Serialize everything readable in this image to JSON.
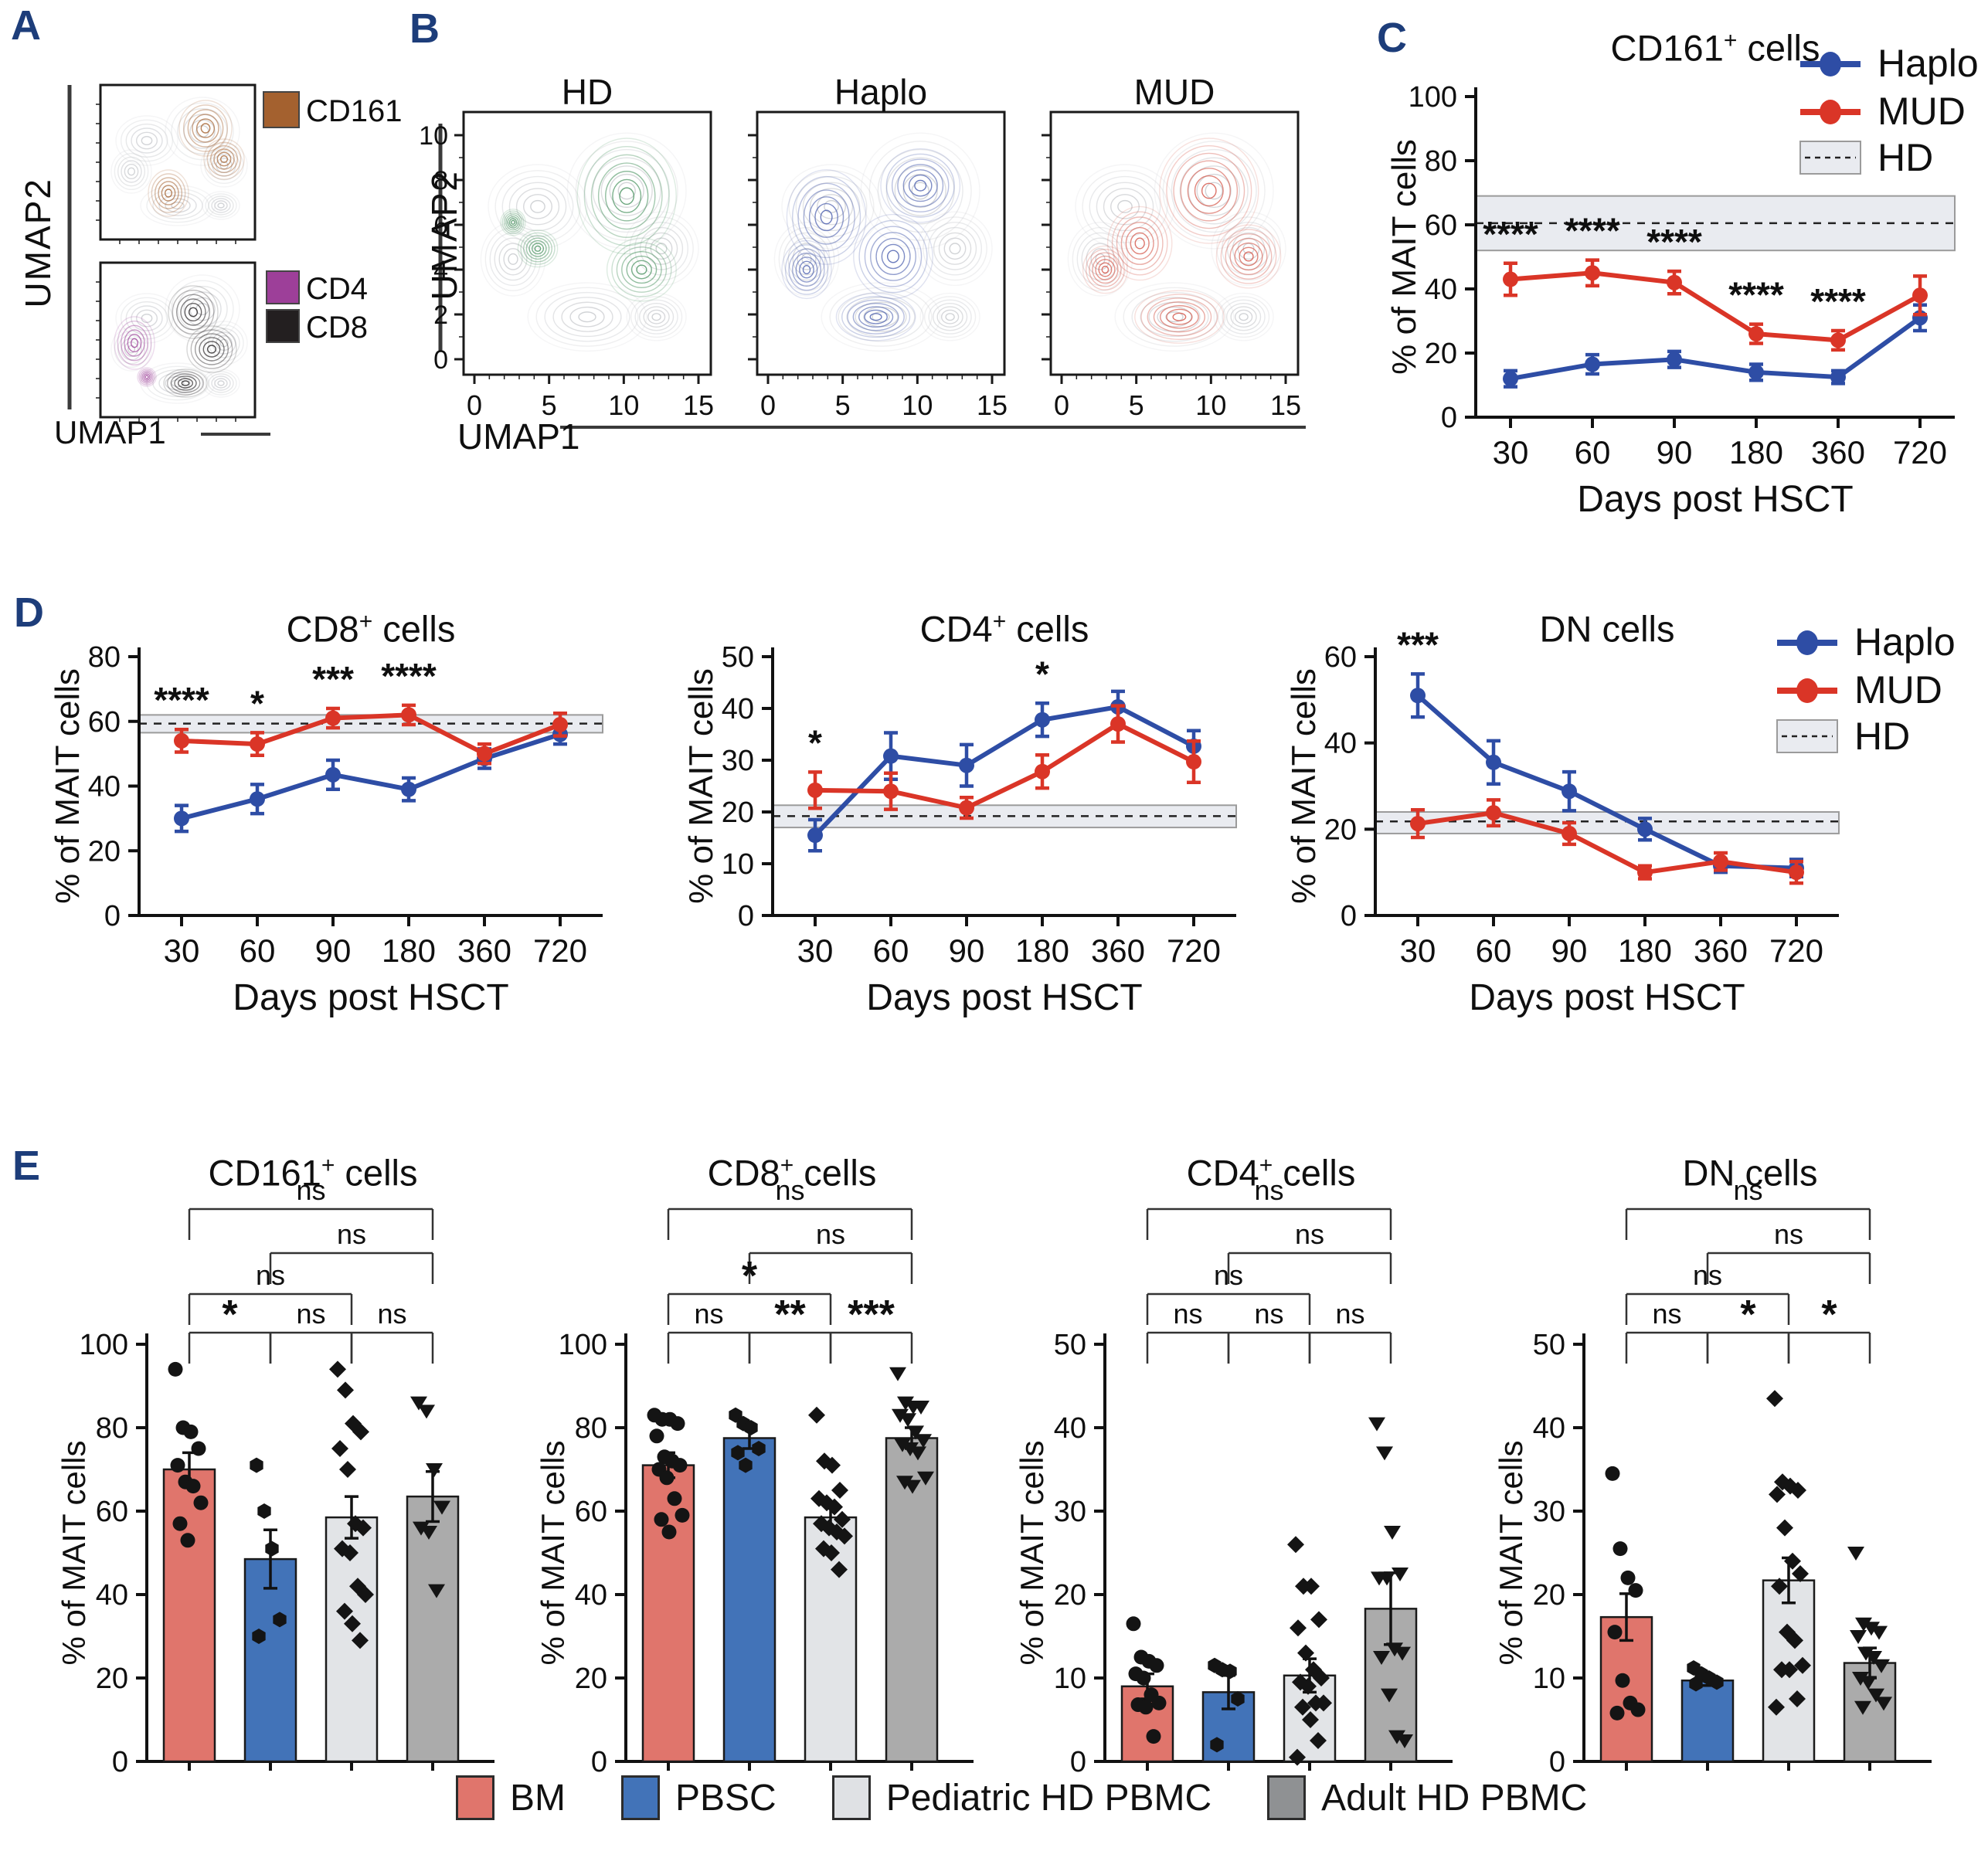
{
  "figure": {
    "panel_labels": {
      "A": "A",
      "B": "B",
      "C": "C",
      "D": "D",
      "E": "E"
    },
    "label_color": "#1d3d7a"
  },
  "panels": {
    "A": {
      "ylabel": "UMAP2",
      "xlabel": "UMAP1",
      "plots": [
        {
          "name": "cd161-map",
          "legend": [
            {
              "label": "CD161",
              "color": "#a4612f"
            }
          ]
        },
        {
          "name": "cd4-cd8-map",
          "legend": [
            {
              "label": "CD4",
              "color": "#9d3f99"
            },
            {
              "label": "CD8",
              "color": "#231f20"
            }
          ]
        }
      ]
    },
    "B": {
      "ylabel": "UMAP2",
      "xlabel": "UMAP1",
      "yticks": [
        0,
        2,
        4,
        6,
        8,
        10
      ],
      "xticks": [
        0,
        5,
        10,
        15
      ],
      "plots": [
        {
          "title": "HD",
          "color": "#4a9360"
        },
        {
          "title": "Haplo",
          "color": "#4c5fae"
        },
        {
          "title": "MUD",
          "color": "#d4574a"
        }
      ]
    }
  },
  "chart_data": [
    {
      "type": "line",
      "title": {
        "base": "CD161",
        "sup": "+",
        "rest": " cells"
      },
      "xlabel": "Days post HSCT",
      "ylabel": "% of MAIT cells",
      "categories": [
        "30",
        "60",
        "90",
        "180",
        "360",
        "720"
      ],
      "ylim": [
        0,
        100
      ],
      "yticks": [
        0,
        20,
        40,
        60,
        80,
        100
      ],
      "hd_band": {
        "label": "HD",
        "low": 52,
        "high": 69,
        "mean": 60.5
      },
      "series": [
        {
          "name": "Haplo",
          "color": "#2e4da5",
          "values": [
            12,
            16.5,
            18,
            14,
            12.5,
            31
          ],
          "errors": [
            2.5,
            3,
            2.5,
            2.5,
            2,
            4
          ]
        },
        {
          "name": "MUD",
          "color": "#da3527",
          "values": [
            43,
            45,
            42,
            26,
            24,
            38
          ],
          "errors": [
            5,
            4,
            3.5,
            3,
            3,
            6
          ]
        }
      ],
      "significance": [
        {
          "i": 0,
          "series": 1,
          "label": "****"
        },
        {
          "i": 1,
          "series": 1,
          "label": "****"
        },
        {
          "i": 2,
          "series": 1,
          "label": "****"
        },
        {
          "i": 3,
          "series": 1,
          "label": "****"
        },
        {
          "i": 4,
          "series": 1,
          "label": "****"
        }
      ],
      "legend": true
    },
    {
      "type": "line",
      "title": {
        "base": "CD8",
        "sup": "+",
        "rest": " cells"
      },
      "xlabel": "Days post HSCT",
      "ylabel": "% of MAIT cells",
      "categories": [
        "30",
        "60",
        "90",
        "180",
        "360",
        "720"
      ],
      "ylim": [
        0,
        80
      ],
      "yticks": [
        0,
        20,
        40,
        60,
        80
      ],
      "hd_band": {
        "label": "HD",
        "low": 56.5,
        "high": 62,
        "mean": 59.3
      },
      "series": [
        {
          "name": "Haplo",
          "color": "#2e4da5",
          "values": [
            30,
            36,
            43.5,
            39,
            48.5,
            56
          ],
          "errors": [
            4,
            4.5,
            4.5,
            3.5,
            3,
            3
          ]
        },
        {
          "name": "MUD",
          "color": "#da3527",
          "values": [
            54,
            53,
            61,
            62,
            50,
            59
          ],
          "errors": [
            3.5,
            3.5,
            3,
            3,
            3,
            3.5
          ]
        }
      ],
      "significance": [
        {
          "i": 0,
          "series": 1,
          "label": "****"
        },
        {
          "i": 1,
          "series": 1,
          "label": "*"
        },
        {
          "i": 2,
          "series": 1,
          "label": "***"
        },
        {
          "i": 3,
          "series": 1,
          "label": "****"
        }
      ],
      "legend": false
    },
    {
      "type": "line",
      "title": {
        "base": "CD4",
        "sup": "+",
        "rest": " cells"
      },
      "xlabel": "Days post HSCT",
      "ylabel": "% of MAIT cells",
      "categories": [
        "30",
        "60",
        "90",
        "180",
        "360",
        "720"
      ],
      "ylim": [
        0,
        50
      ],
      "yticks": [
        0,
        10,
        20,
        30,
        40,
        50
      ],
      "hd_band": {
        "label": "HD",
        "low": 17,
        "high": 21.3,
        "mean": 19.2
      },
      "series": [
        {
          "name": "Haplo",
          "color": "#2e4da5",
          "values": [
            15.5,
            30.8,
            29,
            37.8,
            40.3,
            32.7
          ],
          "errors": [
            3,
            4.5,
            4,
            3.2,
            3,
            3
          ]
        },
        {
          "name": "MUD",
          "color": "#da3527",
          "values": [
            24.2,
            24,
            20.8,
            27.8,
            37,
            29.7
          ],
          "errors": [
            3.5,
            3.5,
            2,
            3.2,
            3.5,
            4
          ]
        }
      ],
      "significance": [
        {
          "i": 0,
          "series": 1,
          "label": "*"
        },
        {
          "i": 3,
          "series": 0,
          "label": "*"
        }
      ],
      "legend": false
    },
    {
      "type": "line",
      "title": {
        "base": "DN",
        "sup": "",
        "rest": " cells"
      },
      "xlabel": "Days post HSCT",
      "ylabel": "% of MAIT cells",
      "categories": [
        "30",
        "60",
        "90",
        "180",
        "360",
        "720"
      ],
      "ylim": [
        0,
        60
      ],
      "yticks": [
        0,
        20,
        40,
        60
      ],
      "hd_band": {
        "label": "HD",
        "low": 19,
        "high": 24,
        "mean": 21.8
      },
      "series": [
        {
          "name": "Haplo",
          "color": "#2e4da5",
          "values": [
            51,
            35.5,
            28.8,
            20,
            11.5,
            11
          ],
          "errors": [
            5,
            5,
            4.5,
            2.5,
            1.5,
            2
          ]
        },
        {
          "name": "MUD",
          "color": "#da3527",
          "values": [
            21.3,
            23.8,
            19,
            10,
            12.5,
            10
          ],
          "errors": [
            3.2,
            3,
            2.5,
            1.5,
            2,
            2.5
          ]
        }
      ],
      "significance": [
        {
          "i": 0,
          "series": 0,
          "label": "***"
        }
      ],
      "legend": true
    },
    {
      "type": "bar",
      "title": {
        "base": "CD161",
        "sup": "+",
        "rest": " cells"
      },
      "ylabel": "% of MAIT cells",
      "ylim": [
        0,
        100
      ],
      "yticks": [
        0,
        20,
        40,
        60,
        80,
        100
      ],
      "groups": [
        {
          "name": "BM",
          "color": "#e0756c",
          "marker": "circle",
          "mean": 70,
          "err": 4,
          "points": [
            94,
            80,
            79,
            75,
            71,
            67,
            66,
            62,
            57,
            53
          ]
        },
        {
          "name": "PBSC",
          "color": "#4273b8",
          "marker": "hexagon",
          "mean": 48.5,
          "err": 7,
          "points": [
            71,
            60,
            51,
            34,
            30
          ]
        },
        {
          "name": "Pediatric HD PBMC",
          "color": "#e2e4e7",
          "marker": "diamond",
          "mean": 58.5,
          "err": 5,
          "points": [
            94,
            89,
            81,
            79,
            75,
            70,
            57,
            56,
            51,
            50,
            42,
            40,
            36,
            33,
            29
          ]
        },
        {
          "name": "Adult HD PBMC",
          "color": "#ababab",
          "marker": "triangle-down",
          "mean": 63.5,
          "err": 6,
          "points": [
            86,
            84,
            70,
            61,
            56,
            55,
            41
          ]
        }
      ],
      "brackets": [
        {
          "a": 0,
          "b": 3,
          "label": "ns",
          "row": 3
        },
        {
          "a": 1,
          "b": 3,
          "label": "ns",
          "row": 2
        },
        {
          "a": 0,
          "b": 2,
          "label": "ns",
          "row": 1
        },
        {
          "a": 0,
          "b": 1,
          "label": "*",
          "row": 0
        },
        {
          "a": 1,
          "b": 2,
          "label": "ns",
          "row": 0
        },
        {
          "a": 2,
          "b": 3,
          "label": "ns",
          "row": 0
        }
      ]
    },
    {
      "type": "bar",
      "title": {
        "base": "CD8",
        "sup": "+",
        "rest": " cells"
      },
      "ylabel": "% of MAIT cells",
      "ylim": [
        0,
        100
      ],
      "yticks": [
        0,
        20,
        40,
        60,
        80,
        100
      ],
      "groups": [
        {
          "name": "BM",
          "color": "#e0756c",
          "marker": "circle",
          "mean": 71,
          "err": 3,
          "points": [
            83,
            82,
            82,
            81,
            78,
            73,
            72,
            71,
            70,
            68,
            63,
            59,
            58,
            55
          ]
        },
        {
          "name": "PBSC",
          "color": "#4273b8",
          "marker": "hexagon",
          "mean": 77.5,
          "err": 2.5,
          "points": [
            83,
            81,
            80,
            75,
            74,
            71
          ]
        },
        {
          "name": "Pediatric HD PBMC",
          "color": "#e2e4e7",
          "marker": "diamond",
          "mean": 58.5,
          "err": 3,
          "points": [
            83,
            72,
            71,
            65,
            63,
            62,
            61,
            58,
            57,
            56,
            55,
            54,
            51,
            50,
            46
          ]
        },
        {
          "name": "Adult HD PBMC",
          "color": "#ababab",
          "marker": "triangle-down",
          "mean": 77.5,
          "err": 2.5,
          "points": [
            93,
            86,
            85,
            85,
            83,
            82,
            79,
            77,
            76,
            75,
            74,
            68,
            67,
            66
          ]
        }
      ],
      "brackets": [
        {
          "a": 0,
          "b": 3,
          "label": "ns",
          "row": 3
        },
        {
          "a": 1,
          "b": 3,
          "label": "ns",
          "row": 2
        },
        {
          "a": 0,
          "b": 2,
          "label": "*",
          "row": 1
        },
        {
          "a": 0,
          "b": 1,
          "label": "ns",
          "row": 0
        },
        {
          "a": 1,
          "b": 2,
          "label": "**",
          "row": 0
        },
        {
          "a": 2,
          "b": 3,
          "label": "***",
          "row": 0
        }
      ]
    },
    {
      "type": "bar",
      "title": {
        "base": "CD4",
        "sup": "+",
        "rest": " cells"
      },
      "ylabel": "% of MAIT cells",
      "ylim": [
        0,
        50
      ],
      "yticks": [
        0,
        10,
        20,
        30,
        40,
        50
      ],
      "groups": [
        {
          "name": "BM",
          "color": "#e0756c",
          "marker": "circle",
          "mean": 9,
          "err": 1.5,
          "points": [
            16.5,
            12.5,
            12,
            11.5,
            10.5,
            10,
            8,
            7,
            6.8,
            6.5,
            3
          ]
        },
        {
          "name": "PBSC",
          "color": "#4273b8",
          "marker": "hexagon",
          "mean": 8.3,
          "err": 2,
          "points": [
            11.5,
            11,
            10.8,
            7.5,
            2
          ]
        },
        {
          "name": "Pediatric HD PBMC",
          "color": "#e2e4e7",
          "marker": "diamond",
          "mean": 10.3,
          "err": 2,
          "points": [
            26,
            21,
            21,
            17,
            16,
            13,
            11,
            10,
            9.5,
            9,
            7,
            7,
            6.5,
            5,
            2.5,
            0.5
          ]
        },
        {
          "name": "Adult HD PBMC",
          "color": "#ababab",
          "marker": "triangle-down",
          "mean": 18.3,
          "err": 4.3,
          "points": [
            40.5,
            37,
            27.5,
            22.5,
            22,
            22,
            13.5,
            13,
            12.5,
            8,
            3,
            2.5
          ]
        }
      ],
      "brackets": [
        {
          "a": 0,
          "b": 3,
          "label": "ns",
          "row": 3
        },
        {
          "a": 1,
          "b": 3,
          "label": "ns",
          "row": 2
        },
        {
          "a": 0,
          "b": 2,
          "label": "ns",
          "row": 1
        },
        {
          "a": 0,
          "b": 1,
          "label": "ns",
          "row": 0
        },
        {
          "a": 1,
          "b": 2,
          "label": "ns",
          "row": 0
        },
        {
          "a": 2,
          "b": 3,
          "label": "ns",
          "row": 0
        }
      ]
    },
    {
      "type": "bar",
      "title": {
        "base": "DN",
        "sup": "",
        "rest": " cells"
      },
      "ylabel": "% of MAIT cells",
      "ylim": [
        0,
        50
      ],
      "yticks": [
        0,
        10,
        20,
        30,
        40,
        50
      ],
      "groups": [
        {
          "name": "BM",
          "color": "#e0756c",
          "marker": "circle",
          "mean": 17.3,
          "err": 2.8,
          "points": [
            34.5,
            25.5,
            22,
            20.5,
            15.5,
            9.7,
            7,
            6.2,
            5.8
          ]
        },
        {
          "name": "PBSC",
          "color": "#4273b8",
          "marker": "hexagon",
          "mean": 9.7,
          "err": 0.6,
          "points": [
            11.2,
            10.5,
            10,
            9.5,
            9.3
          ]
        },
        {
          "name": "Pediatric HD PBMC",
          "color": "#e2e4e7",
          "marker": "diamond",
          "mean": 21.7,
          "err": 2.7,
          "points": [
            43.5,
            33.5,
            33,
            32.5,
            32,
            28,
            24,
            22.5,
            21,
            15.5,
            14.5,
            11.5,
            11,
            11,
            7.5,
            6.5
          ]
        },
        {
          "name": "Adult HD PBMC",
          "color": "#ababab",
          "marker": "triangle-down",
          "mean": 11.8,
          "err": 1.8,
          "points": [
            25,
            16.5,
            16,
            15.5,
            15,
            13,
            12.5,
            11.5,
            10,
            9.5,
            8,
            7,
            6.5
          ]
        }
      ],
      "brackets": [
        {
          "a": 0,
          "b": 3,
          "label": "ns",
          "row": 3
        },
        {
          "a": 1,
          "b": 3,
          "label": "ns",
          "row": 2
        },
        {
          "a": 0,
          "b": 2,
          "label": "ns",
          "row": 1
        },
        {
          "a": 0,
          "b": 1,
          "label": "ns",
          "row": 0
        },
        {
          "a": 1,
          "b": 2,
          "label": "*",
          "row": 0
        },
        {
          "a": 2,
          "b": 3,
          "label": "*",
          "row": 0
        }
      ]
    }
  ],
  "bottom_legend": {
    "items": [
      {
        "label": "BM",
        "color": "#e0756c"
      },
      {
        "label": "PBSC",
        "color": "#4273b8"
      },
      {
        "label": "Pediatric HD PBMC",
        "color": "#dfe1e4"
      },
      {
        "label": "Adult HD PBMC",
        "color": "#8f9193"
      }
    ]
  }
}
